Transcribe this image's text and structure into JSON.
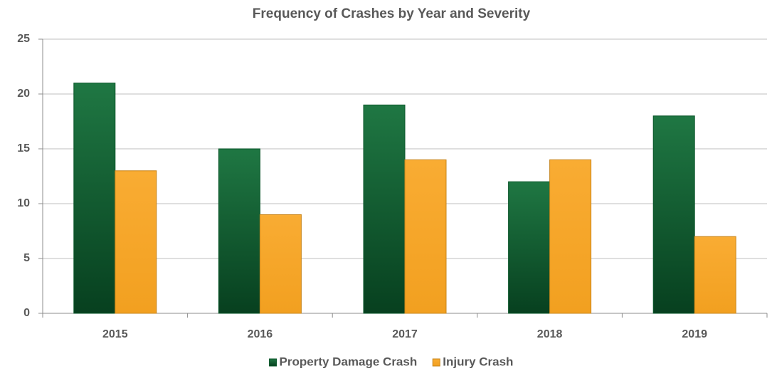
{
  "chart_data": {
    "type": "bar",
    "title": "Frequency of Crashes by Year and Severity",
    "categories": [
      "2015",
      "2016",
      "2017",
      "2018",
      "2019"
    ],
    "series": [
      {
        "name": "Property Damage Crash",
        "color": "#0b6b33",
        "values": [
          21,
          15,
          19,
          12,
          18
        ]
      },
      {
        "name": "Injury Crash",
        "color": "#f9a521",
        "values": [
          13,
          9,
          14,
          14,
          7
        ]
      }
    ],
    "ylim": [
      0,
      25
    ],
    "yticks": [
      0,
      5,
      10,
      15,
      20,
      25
    ],
    "grid": true,
    "legend": "bottom"
  }
}
